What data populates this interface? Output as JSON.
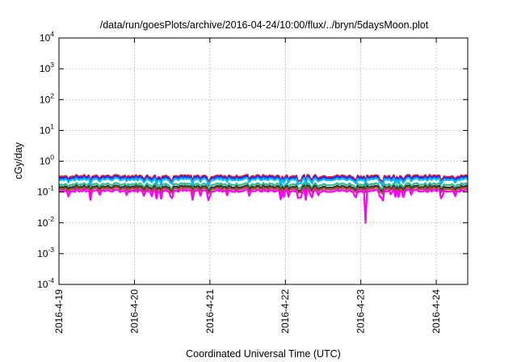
{
  "chart_data": {
    "type": "line",
    "title": "/data/run/goesPlots/archive/2016-04-24/10:00/flux/../bryn/5daysMoon.plot",
    "xlabel": "Coordinated Universal Time (UTC)",
    "ylabel": "cGy/day",
    "yscale": "log",
    "ylim": [
      0.0001,
      10000
    ],
    "xlim": [
      "2016-04-19 00:00",
      "2016-04-24 10:00"
    ],
    "grid": true,
    "legend": "none",
    "x_ticks": [
      "2016-4-19",
      "2016-4-20",
      "2016-4-21",
      "2016-4-22",
      "2016-4-23",
      "2016-4-24"
    ],
    "y_ticks": [
      {
        "base": "10",
        "exp": "-4"
      },
      {
        "base": "10",
        "exp": "-3"
      },
      {
        "base": "10",
        "exp": "-2"
      },
      {
        "base": "10",
        "exp": "-1"
      },
      {
        "base": "10",
        "exp": "0"
      },
      {
        "base": "10",
        "exp": "1"
      },
      {
        "base": "10",
        "exp": "2"
      },
      {
        "base": "10",
        "exp": "3"
      },
      {
        "base": "10",
        "exp": "4"
      }
    ],
    "series": [
      {
        "color": "#e41a1c",
        "baseline": 0.33,
        "dip_depth": 0.35
      },
      {
        "color": "#2a2aff",
        "baseline": 0.3,
        "dip_depth": 0.45
      },
      {
        "color": "#00bfff",
        "baseline": 0.26,
        "dip_depth": 0.3
      },
      {
        "color": "#2ebd8a",
        "baseline": 0.18,
        "dip_depth": 0.3
      },
      {
        "color": "#333333",
        "baseline": 0.15,
        "dip_depth": 0.3
      },
      {
        "color": "#a0522d",
        "baseline": 0.13,
        "dip_depth": 0.3
      },
      {
        "color": "#ff00ff",
        "baseline": 0.11,
        "dip_depth": 0.5,
        "spike": {
          "x": "2016-04-23 01:30",
          "y": 0.01
        }
      }
    ]
  }
}
